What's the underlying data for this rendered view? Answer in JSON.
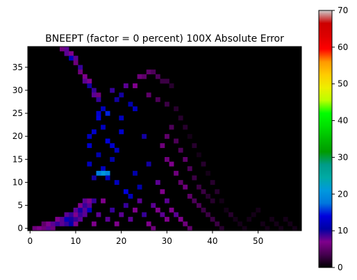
{
  "chart_data": {
    "type": "heatmap",
    "title": "BNEEPT (factor = 0 percent) 100X Absolute Error",
    "xlabel": "",
    "ylabel": "",
    "grid": false,
    "x_range": [
      -0.5,
      59.5
    ],
    "y_range": [
      -0.5,
      39.5
    ],
    "x_ticks": [
      0,
      10,
      20,
      30,
      40,
      50
    ],
    "y_ticks": [
      0,
      5,
      10,
      15,
      20,
      25,
      30,
      35
    ],
    "colormap": "nipy_spectral",
    "colorbar": {
      "range": [
        0,
        70
      ],
      "ticks": [
        0,
        10,
        20,
        30,
        40,
        50,
        60,
        70
      ],
      "stops": [
        {
          "v": 0,
          "c": "#000000"
        },
        {
          "v": 3.5,
          "c": "#45004f"
        },
        {
          "v": 7,
          "c": "#7f008c"
        },
        {
          "v": 10.5,
          "c": "#0000a3"
        },
        {
          "v": 14,
          "c": "#0000dd"
        },
        {
          "v": 17.5,
          "c": "#0077dd"
        },
        {
          "v": 21,
          "c": "#0099dd"
        },
        {
          "v": 24.5,
          "c": "#00aaa5"
        },
        {
          "v": 28,
          "c": "#009b88"
        },
        {
          "v": 31.5,
          "c": "#009b00"
        },
        {
          "v": 35,
          "c": "#00bb00"
        },
        {
          "v": 38.5,
          "c": "#00e000"
        },
        {
          "v": 42,
          "c": "#00ff00"
        },
        {
          "v": 45.5,
          "c": "#bbff00"
        },
        {
          "v": 49,
          "c": "#eeee00"
        },
        {
          "v": 52.5,
          "c": "#ffcc00"
        },
        {
          "v": 56,
          "c": "#ff9900"
        },
        {
          "v": 59.5,
          "c": "#ff0000"
        },
        {
          "v": 63,
          "c": "#dd0000"
        },
        {
          "v": 66.5,
          "c": "#cc0000"
        },
        {
          "v": 70,
          "c": "#cccccc"
        }
      ]
    },
    "cells": [
      [
        7,
        39,
        6
      ],
      [
        8,
        39,
        8
      ],
      [
        8,
        38,
        8
      ],
      [
        9,
        38,
        7
      ],
      [
        9,
        37,
        12
      ],
      [
        10,
        37,
        8
      ],
      [
        10,
        36,
        6
      ],
      [
        11,
        35,
        9
      ],
      [
        11,
        34,
        6
      ],
      [
        12,
        33,
        7
      ],
      [
        12,
        32,
        8
      ],
      [
        13,
        32,
        7
      ],
      [
        13,
        31,
        10
      ],
      [
        14,
        30,
        9
      ],
      [
        14,
        29,
        8
      ],
      [
        15,
        29,
        6
      ],
      [
        15,
        28,
        9
      ],
      [
        1,
        0,
        6
      ],
      [
        2,
        0,
        7
      ],
      [
        3,
        0,
        6
      ],
      [
        4,
        0,
        8
      ],
      [
        5,
        0,
        6
      ],
      [
        3,
        1,
        5
      ],
      [
        4,
        1,
        7
      ],
      [
        5,
        1,
        8
      ],
      [
        6,
        1,
        9
      ],
      [
        7,
        1,
        8
      ],
      [
        8,
        1,
        9
      ],
      [
        9,
        1,
        11
      ],
      [
        10,
        1,
        7
      ],
      [
        6,
        2,
        7
      ],
      [
        7,
        2,
        8
      ],
      [
        8,
        2,
        12
      ],
      [
        9,
        2,
        10
      ],
      [
        10,
        2,
        9
      ],
      [
        11,
        2,
        8
      ],
      [
        8,
        3,
        8
      ],
      [
        9,
        3,
        9
      ],
      [
        10,
        3,
        7
      ],
      [
        11,
        3,
        9
      ],
      [
        12,
        3,
        8
      ],
      [
        10,
        4,
        8
      ],
      [
        11,
        4,
        10
      ],
      [
        12,
        4,
        8
      ],
      [
        13,
        4,
        12
      ],
      [
        11,
        5,
        7
      ],
      [
        12,
        5,
        9
      ],
      [
        13,
        5,
        8
      ],
      [
        12,
        6,
        8
      ],
      [
        13,
        6,
        7
      ],
      [
        14,
        6,
        9
      ],
      [
        13,
        14,
        12
      ],
      [
        13,
        18,
        13
      ],
      [
        13,
        20,
        12
      ],
      [
        14,
        21,
        13
      ],
      [
        15,
        24,
        14
      ],
      [
        15,
        25,
        13
      ],
      [
        16,
        26,
        12
      ],
      [
        17,
        25,
        15
      ],
      [
        16,
        22,
        12
      ],
      [
        17,
        19,
        14
      ],
      [
        18,
        18,
        13
      ],
      [
        19,
        17,
        12
      ],
      [
        20,
        21,
        13
      ],
      [
        16,
        13,
        12
      ],
      [
        16,
        12,
        21
      ],
      [
        17,
        12,
        19
      ],
      [
        15,
        12,
        18
      ],
      [
        17,
        11,
        12
      ],
      [
        19,
        10,
        12
      ],
      [
        21,
        8,
        14
      ],
      [
        22,
        7,
        12
      ],
      [
        23,
        12,
        11
      ],
      [
        20,
        24,
        12
      ],
      [
        19,
        28,
        10
      ],
      [
        22,
        27,
        11
      ],
      [
        23,
        26,
        12
      ],
      [
        18,
        15,
        11
      ],
      [
        15,
        16,
        11
      ],
      [
        14,
        11,
        10
      ],
      [
        24,
        9,
        11
      ],
      [
        25,
        20,
        10
      ],
      [
        26,
        14,
        10
      ],
      [
        18,
        30,
        9
      ],
      [
        20,
        29,
        10
      ],
      [
        21,
        31,
        8
      ],
      [
        23,
        31,
        7
      ],
      [
        24,
        33,
        6
      ],
      [
        25,
        33,
        5
      ],
      [
        26,
        34,
        5
      ],
      [
        27,
        34,
        4
      ],
      [
        28,
        33,
        4
      ],
      [
        29,
        32,
        3
      ],
      [
        30,
        32,
        3
      ],
      [
        31,
        31,
        2
      ],
      [
        26,
        29,
        5
      ],
      [
        28,
        28,
        4
      ],
      [
        30,
        27,
        3
      ],
      [
        32,
        26,
        2
      ],
      [
        33,
        24,
        2
      ],
      [
        34,
        22,
        2
      ],
      [
        35,
        20,
        1
      ],
      [
        36,
        18,
        2
      ],
      [
        37,
        16,
        1
      ],
      [
        38,
        14,
        2
      ],
      [
        39,
        12,
        1
      ],
      [
        40,
        10,
        2
      ],
      [
        41,
        8,
        2
      ],
      [
        42,
        6,
        1
      ],
      [
        43,
        4,
        1
      ],
      [
        44,
        3,
        2
      ],
      [
        45,
        2,
        1
      ],
      [
        46,
        1,
        1
      ],
      [
        47,
        0,
        1
      ],
      [
        48,
        2,
        1
      ],
      [
        49,
        3,
        1
      ],
      [
        50,
        4,
        1
      ],
      [
        51,
        1,
        1
      ],
      [
        52,
        0,
        1
      ],
      [
        53,
        2,
        1
      ],
      [
        54,
        1,
        1
      ],
      [
        55,
        0,
        1
      ],
      [
        56,
        2,
        1
      ],
      [
        57,
        1,
        1
      ],
      [
        58,
        0,
        1
      ],
      [
        30,
        15,
        6
      ],
      [
        31,
        14,
        7
      ],
      [
        32,
        12,
        6
      ],
      [
        33,
        10,
        5
      ],
      [
        34,
        9,
        6
      ],
      [
        35,
        7,
        5
      ],
      [
        36,
        6,
        4
      ],
      [
        37,
        5,
        4
      ],
      [
        38,
        4,
        3
      ],
      [
        39,
        3,
        3
      ],
      [
        40,
        2,
        3
      ],
      [
        41,
        1,
        3
      ],
      [
        42,
        0,
        2
      ],
      [
        29,
        18,
        6
      ],
      [
        30,
        20,
        5
      ],
      [
        31,
        22,
        4
      ],
      [
        32,
        19,
        4
      ],
      [
        33,
        17,
        4
      ],
      [
        34,
        15,
        5
      ],
      [
        35,
        13,
        4
      ],
      [
        36,
        11,
        3
      ],
      [
        37,
        9,
        3
      ],
      [
        38,
        8,
        3
      ],
      [
        39,
        7,
        2
      ],
      [
        40,
        6,
        2
      ],
      [
        28,
        10,
        8
      ],
      [
        29,
        8,
        7
      ],
      [
        30,
        6,
        8
      ],
      [
        31,
        4,
        7
      ],
      [
        32,
        3,
        8
      ],
      [
        33,
        2,
        7
      ],
      [
        34,
        1,
        6
      ],
      [
        35,
        0,
        5
      ],
      [
        27,
        5,
        8
      ],
      [
        28,
        4,
        7
      ],
      [
        29,
        3,
        8
      ],
      [
        30,
        2,
        7
      ],
      [
        26,
        1,
        7
      ],
      [
        27,
        0,
        6
      ],
      [
        25,
        3,
        9
      ],
      [
        24,
        6,
        8
      ],
      [
        23,
        4,
        7
      ],
      [
        22,
        2,
        8
      ],
      [
        21,
        5,
        9
      ],
      [
        20,
        3,
        8
      ],
      [
        19,
        1,
        7
      ],
      [
        18,
        4,
        9
      ],
      [
        17,
        2,
        8
      ],
      [
        16,
        6,
        7
      ],
      [
        15,
        3,
        8
      ],
      [
        14,
        1,
        7
      ]
    ]
  }
}
